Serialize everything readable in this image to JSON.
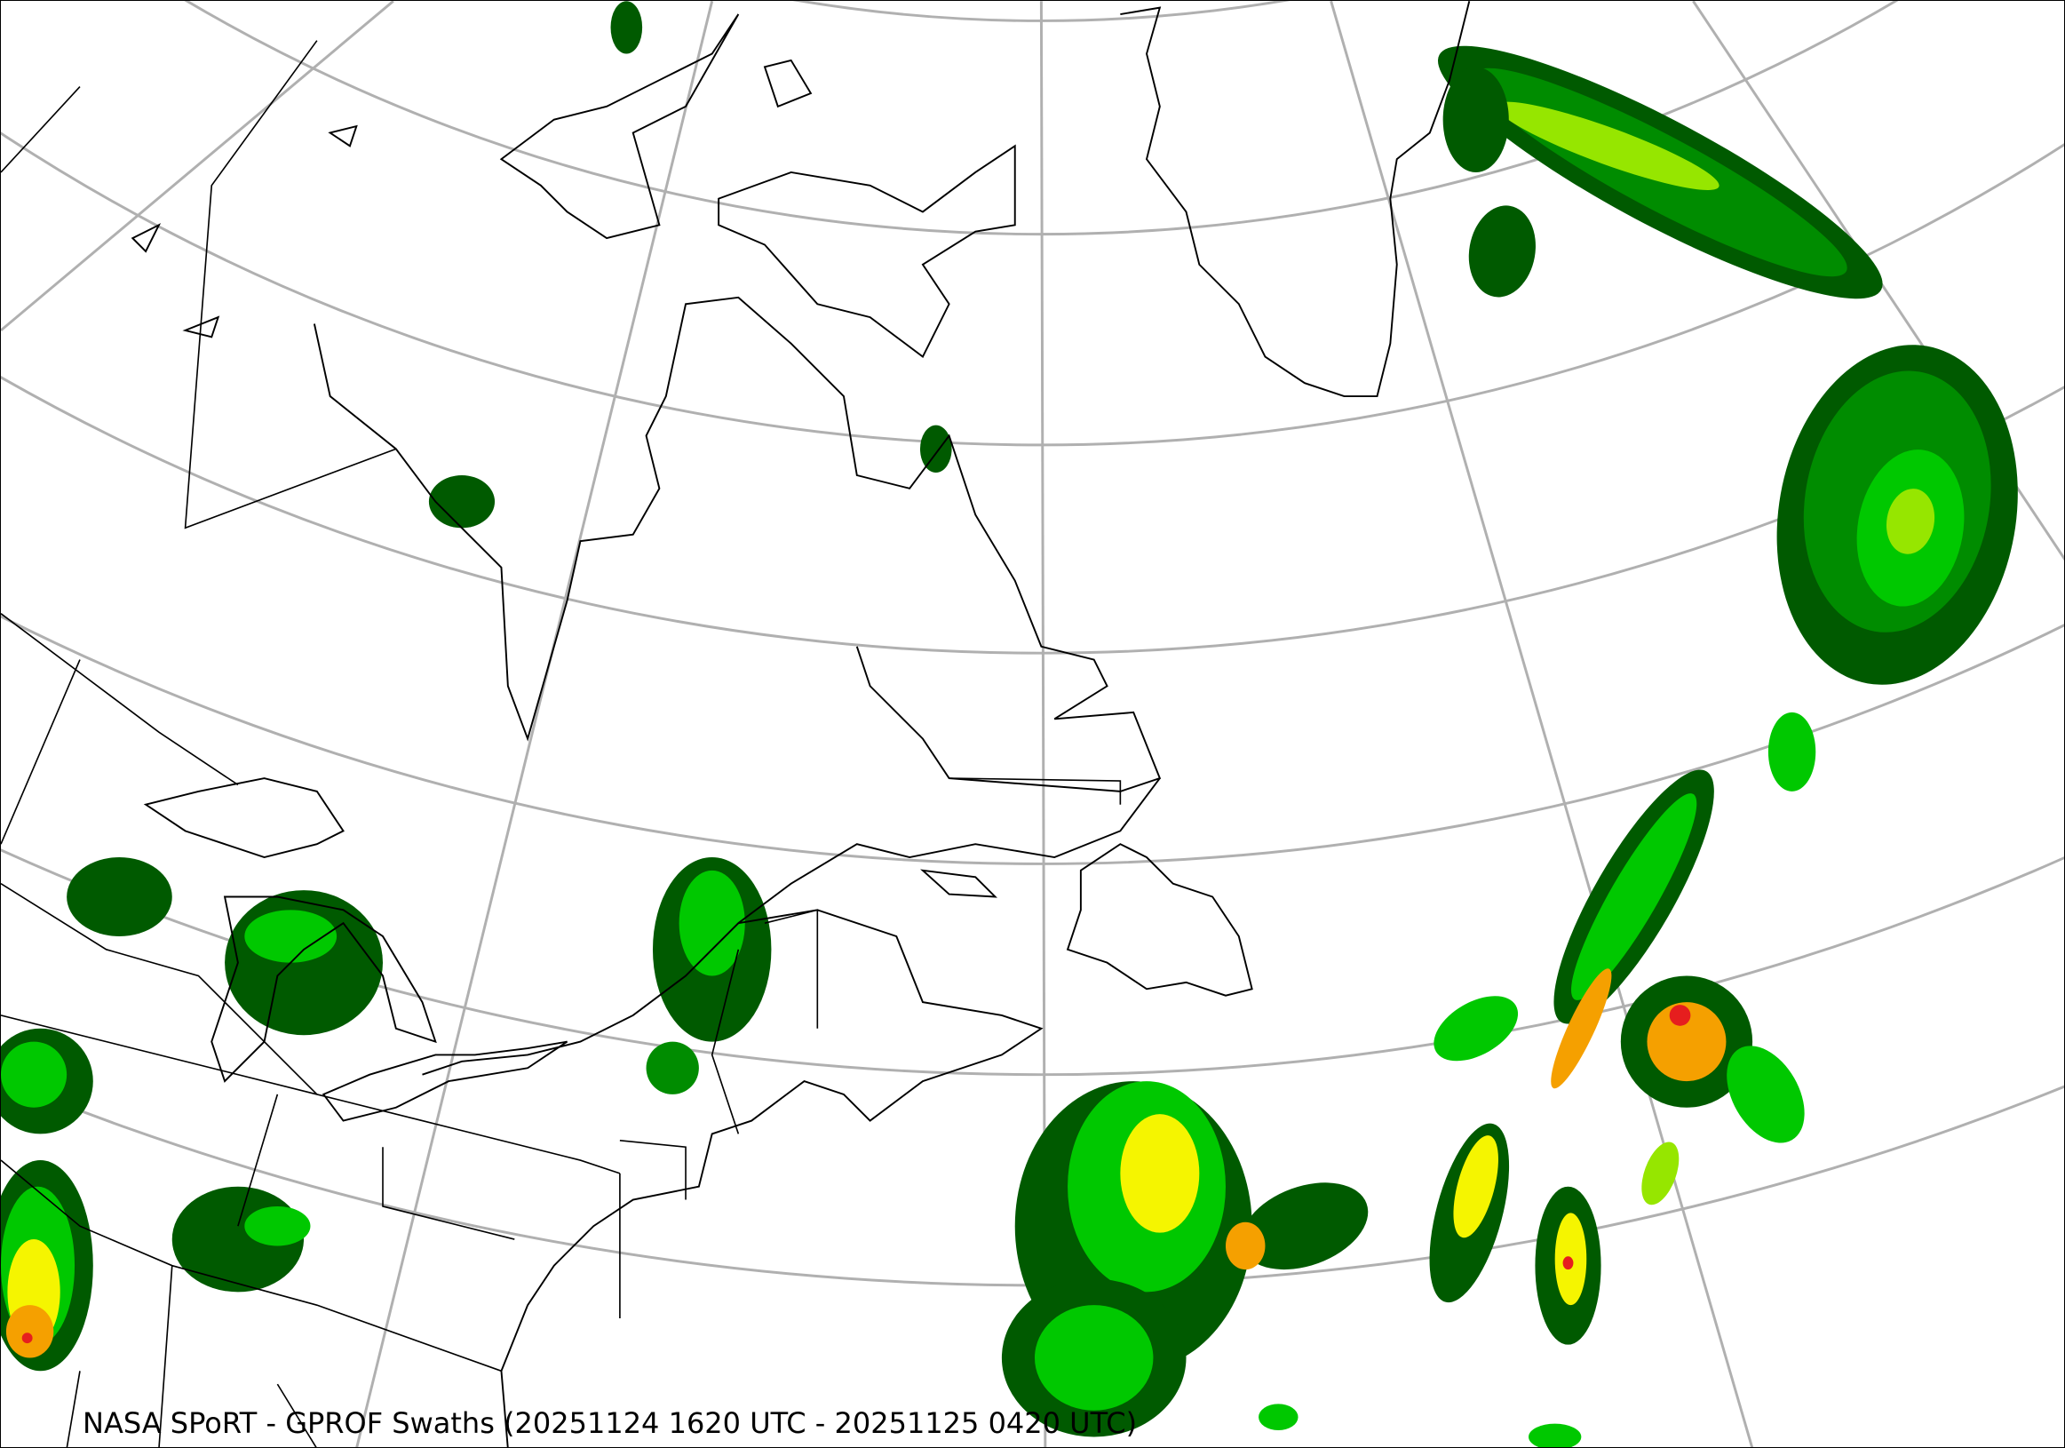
{
  "caption": "NASA SPoRT - GPROF Swaths (20251124 1620 UTC - 20251125 0420 UTC)",
  "map": {
    "projection": "conic",
    "region": "Northeastern North America, Greenland and North Atlantic",
    "graticule_color": "#b0b0b0",
    "coastline_color": "#000000",
    "precip_colors": {
      "light": "#005a00",
      "light_moderate": "#008c00",
      "moderate": "#00c800",
      "moderate_heavy": "#96e600",
      "heavy": "#f5f500",
      "very_heavy": "#f5a000",
      "extreme": "#e61e1e"
    }
  }
}
